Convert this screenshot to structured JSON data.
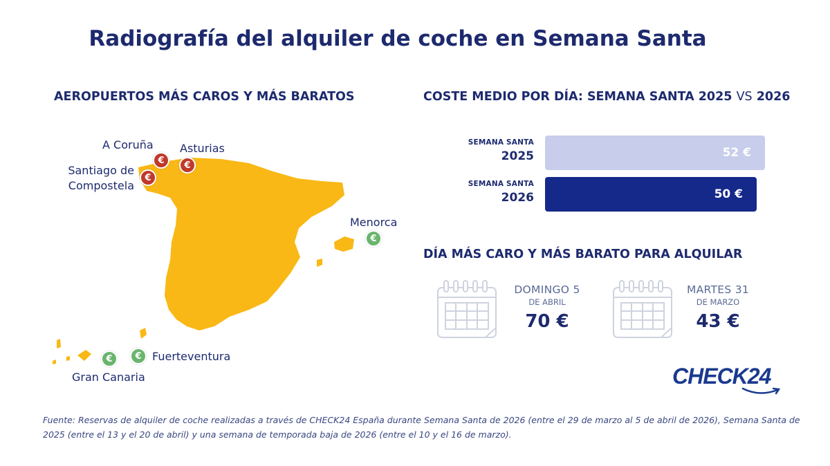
{
  "title": "Radiografía del alquiler de coche en Semana Santa",
  "airports": {
    "heading": "AEROPUERTOS MÁS CAROS Y MÁS BARATOS",
    "expensive": [
      "A Coruña",
      "Asturias",
      "Santiago de Compostela"
    ],
    "santiago_line1": "Santiago de",
    "santiago_line2": "Compostela",
    "cheap": [
      "Menorca",
      "Fuerteventura",
      "Gran Canaria"
    ],
    "pin_symbol": "€",
    "colors": {
      "map": "#f9b815",
      "expensive_pin": "#c0392b",
      "cheap_pin": "#6ab56e"
    }
  },
  "cost": {
    "heading_main": "COSTE MEDIO POR DÍA: SEMANA SANTA 2025",
    "heading_vs": "VS",
    "heading_year": "2026"
  },
  "chart_data": {
    "type": "bar",
    "orientation": "horizontal",
    "categories": [
      "SEMANA SANTA 2025",
      "SEMANA SANTA 2026"
    ],
    "category_line1": [
      "SEMANA SANTA",
      "SEMANA SANTA"
    ],
    "category_line2": [
      "2025",
      "2026"
    ],
    "values": [
      52,
      50
    ],
    "value_labels": [
      "52 €",
      "50 €"
    ],
    "unit": "€",
    "colors": [
      "#c7cdea",
      "#15298a"
    ],
    "title": "COSTE MEDIO POR DÍA: SEMANA SANTA 2025 VS 2026",
    "xlim": [
      0,
      52
    ]
  },
  "days": {
    "heading": "DÍA MÁS CARO Y MÁS BARATO PARA ALQUILAR",
    "expensive": {
      "line1": "DOMINGO 5",
      "line2": "DE ABRIL",
      "price": "70 €"
    },
    "cheap": {
      "line1": "MARTES 31",
      "line2": "DE MARZO",
      "price": "43 €"
    }
  },
  "logo": "CHECK24",
  "source": "Fuente: Reservas de alquiler de coche realizadas a través de CHECK24 España durante Semana Santa de 2026 (entre el 29 de marzo al 5 de abril de 2026), Semana Santa de 2025 (entre el 13 y el 20 de abril) y una semana de temporada baja de 2026 (entre el 10 y el 16 de marzo)."
}
